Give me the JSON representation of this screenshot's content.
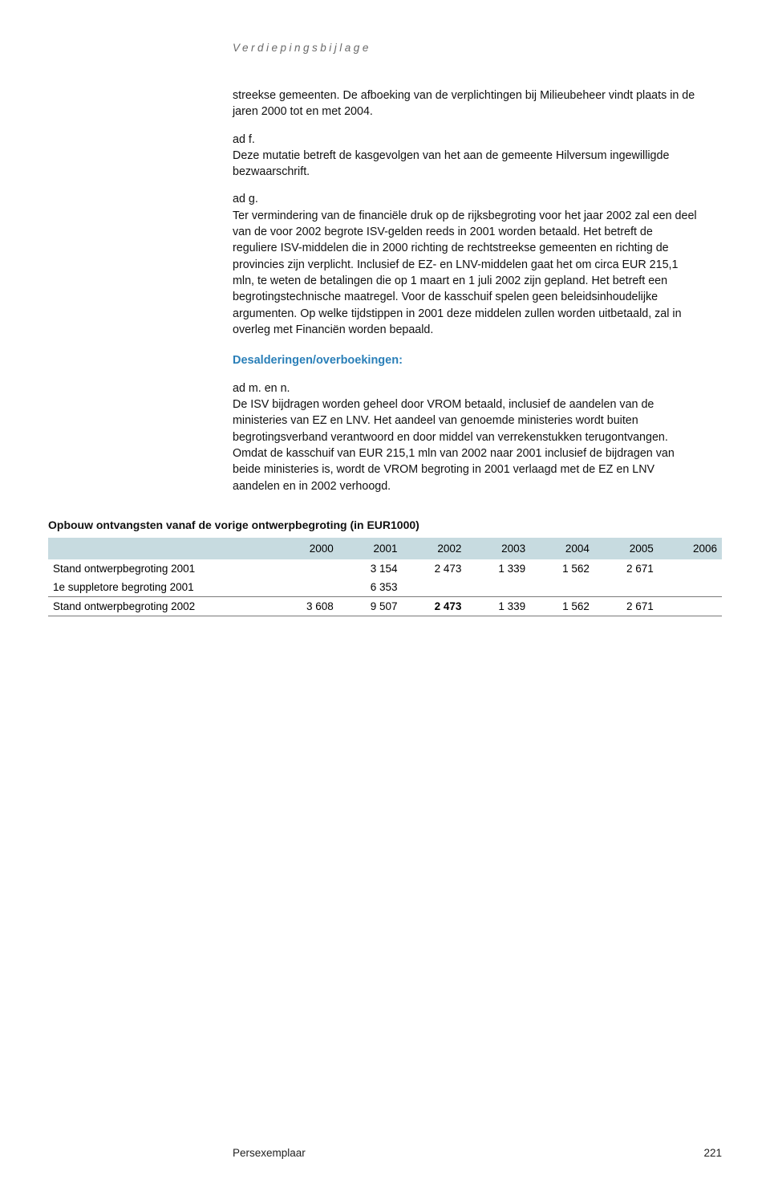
{
  "header": {
    "running_head": "Verdiepingsbijlage"
  },
  "body": {
    "p1": "streekse gemeenten. De afboeking van de verplichtingen bij Milieubeheer vindt plaats in de jaren 2000 tot en met 2004.",
    "p2_lead": "ad f.",
    "p2": "Deze mutatie betreft de kasgevolgen van het aan de gemeente Hilversum ingewilligde bezwaarschrift.",
    "p3_lead": "ad g.",
    "p3": "Ter vermindering van de financiële druk op de rijksbegroting voor het jaar 2002 zal een deel van de voor 2002 begrote ISV-gelden reeds in 2001 worden betaald. Het betreft de reguliere ISV-middelen die in 2000 richting de rechtstreekse gemeenten en richting de provincies zijn verplicht. Inclusief de EZ- en LNV-middelen gaat het om circa EUR 215,1 mln, te weten de betalingen die op 1 maart en 1 juli 2002 zijn gepland. Het betreft een begrotingstechnische maatregel. Voor de kasschuif spelen geen beleidsinhoudelijke argumenten. Op welke tijdstippen in 2001 deze middelen zullen worden uitbetaald, zal in overleg met Financiën worden bepaald.",
    "subhead": "Desalderingen/overboekingen:",
    "p4_lead": "ad m. en n.",
    "p4": "De ISV bijdragen worden geheel door VROM betaald, inclusief de aandelen van de ministeries van EZ en LNV. Het aandeel van genoemde ministeries wordt buiten begrotingsverband verantwoord en door middel van verrekenstukken terugontvangen. Omdat de kasschuif van EUR 215,1 mln van 2002 naar 2001 inclusief de bijdragen van beide ministeries is, wordt de VROM begroting in 2001 verlaagd met de EZ en LNV aandelen en in 2002 verhoogd."
  },
  "table": {
    "title": "Opbouw ontvangsten vanaf de vorige ontwerpbegroting (in EUR1000)",
    "header_cells": [
      "",
      "2000",
      "2001",
      "2002",
      "2003",
      "2004",
      "2005",
      "2006"
    ],
    "rows": [
      {
        "label": "Stand ontwerpbegroting 2001",
        "cells": [
          "",
          "3 154",
          "2 473",
          "1 339",
          "1 562",
          "2 671",
          ""
        ],
        "bold_cols": []
      },
      {
        "label": "1e suppletore begroting 2001",
        "cells": [
          "",
          "6 353",
          "",
          "",
          "",
          "",
          ""
        ],
        "bold_cols": []
      }
    ],
    "total_row": {
      "label": "Stand ontwerpbegroting 2002",
      "cells": [
        "3 608",
        "9 507",
        "2 473",
        "1 339",
        "1 562",
        "2 671",
        ""
      ]
    },
    "bold_year": "2002",
    "bold_total_value": "2 473",
    "colors": {
      "head_bg": "#c7dbe0",
      "rule": "#7a7a7a",
      "subhead_blue": "#2a7fb8"
    },
    "font_size_pt": 10
  },
  "footer": {
    "center": "Persexemplaar",
    "page_number": "221"
  }
}
